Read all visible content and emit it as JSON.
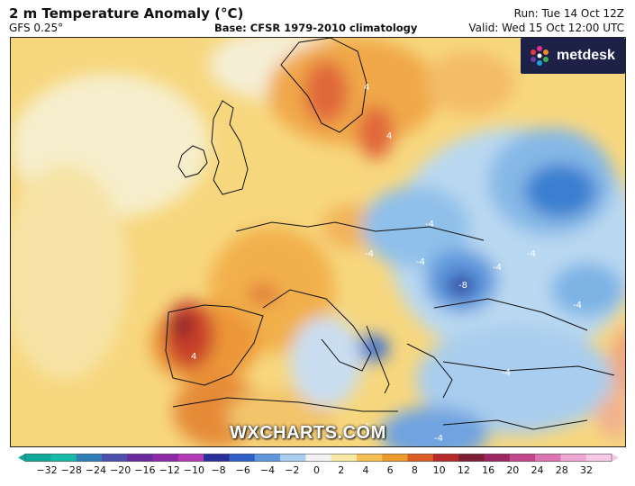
{
  "header": {
    "title": "2 m Temperature Anomaly (°C)",
    "model": "GFS 0.25°",
    "base": "Base: CFSR 1979-2010 climatology",
    "run": "Run: Tue 14 Oct 12Z",
    "valid": "Valid: Wed 15 Oct 12:00 UTC"
  },
  "logo": {
    "text": "metdesk",
    "accent": "#e0338f",
    "background": "#1d2147"
  },
  "watermark": "WXCHARTS.COM",
  "map": {
    "contour_labels": [
      "4",
      "4",
      "-4",
      "-4",
      "-4",
      "-4",
      "-4",
      "-8",
      "-4",
      "4",
      "-4",
      "-4",
      "-4"
    ]
  },
  "colorbar": {
    "ticks": [
      "−32",
      "−28",
      "−24",
      "−20",
      "−16",
      "−12",
      "−10",
      "−8",
      "−6",
      "−4",
      "−2",
      "0",
      "2",
      "4",
      "6",
      "8",
      "10",
      "12",
      "16",
      "20",
      "24",
      "28",
      "32"
    ],
    "colors": [
      "#0fa89a",
      "#19b9a8",
      "#2f7fb6",
      "#4b4fae",
      "#6a2a9e",
      "#8e2aa8",
      "#b23bb5",
      "#2b2f9c",
      "#2f5fc9",
      "#5f97dd",
      "#a9cdee",
      "#f3f3f3",
      "#f8e9a7",
      "#f4c053",
      "#eb9a2e",
      "#db5c25",
      "#b72a2a",
      "#7e1f35",
      "#9c2762",
      "#c2468c",
      "#dc76b3",
      "#eea6d2",
      "#f6c9e6"
    ]
  }
}
